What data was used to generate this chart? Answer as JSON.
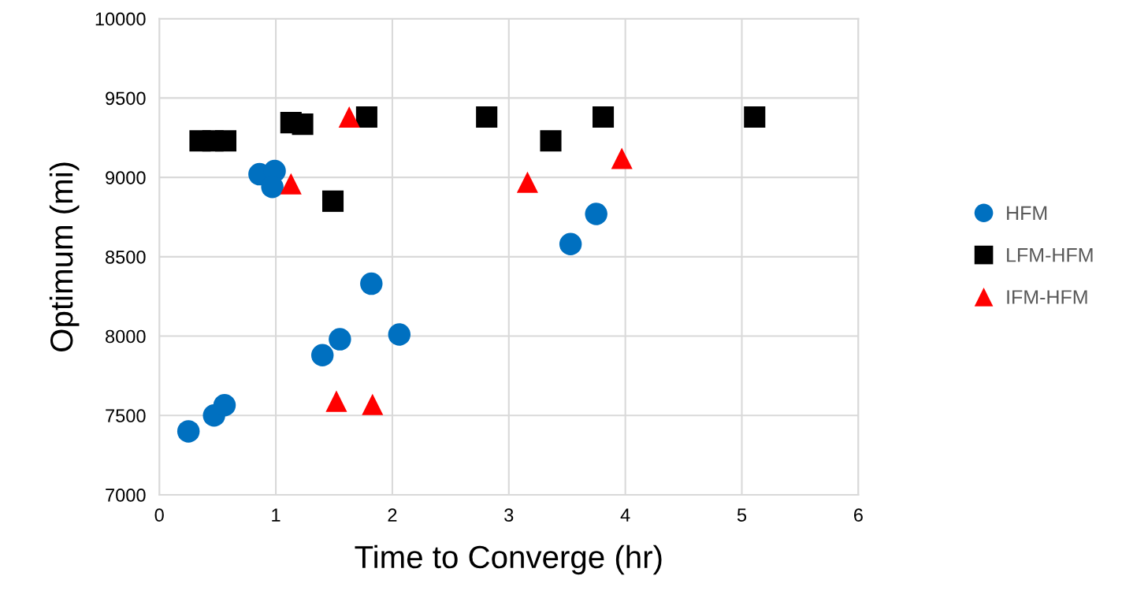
{
  "chart_data": {
    "type": "scatter",
    "xlabel": "Time to Converge (hr)",
    "ylabel": "Optimum (mi)",
    "xlim": [
      0,
      6
    ],
    "xticks": [
      0,
      1,
      2,
      3,
      4,
      5,
      6
    ],
    "ylim": [
      7000,
      10000
    ],
    "yticks": [
      7000,
      7500,
      8000,
      8500,
      9000,
      9500,
      10000
    ],
    "grid": true,
    "legend": "right",
    "series": [
      {
        "name": "HFM",
        "color": "#0070c0",
        "marker": "circle",
        "x": [
          0.25,
          0.47,
          0.56,
          0.86,
          0.99,
          0.97,
          1.4,
          1.55,
          1.82,
          2.06,
          3.53,
          3.75
        ],
        "values": [
          7400,
          7500,
          7565,
          9020,
          9040,
          8940,
          7880,
          7980,
          8330,
          8010,
          8580,
          8770
        ]
      },
      {
        "name": "LFM-HFM",
        "color": "#000000",
        "marker": "square",
        "x": [
          0.35,
          0.46,
          0.57,
          1.13,
          1.23,
          1.49,
          1.78,
          2.81,
          3.36,
          3.81,
          5.11
        ],
        "values": [
          9230,
          9230,
          9230,
          9345,
          9335,
          8850,
          9380,
          9380,
          9230,
          9380,
          9380
        ]
      },
      {
        "name": "IFM-HFM",
        "color": "#ff0000",
        "marker": "triangle",
        "x": [
          1.13,
          1.63,
          1.52,
          1.83,
          3.16,
          3.97
        ],
        "values": [
          8960,
          9380,
          7590,
          7570,
          8970,
          9120
        ]
      }
    ]
  }
}
